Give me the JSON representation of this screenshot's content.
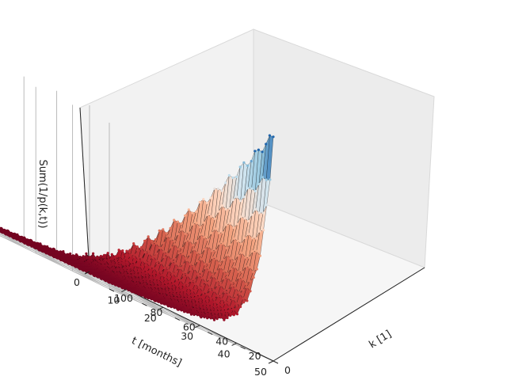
{
  "chart_data": {
    "type": "surface3d",
    "title": "",
    "xlabel": "t [months]",
    "ylabel": "k [1]",
    "zlabel": "Sum(1/p(k,t))",
    "x_ticks": [
      "0",
      "10",
      "20",
      "30",
      "40",
      "50"
    ],
    "y_ticks": [
      "0",
      "20",
      "40",
      "60",
      "80",
      "100"
    ],
    "xlim": [
      0,
      50
    ],
    "ylim": [
      0,
      100
    ],
    "z_tick_labels_shown": false,
    "grid": true,
    "colormap": "RdBu (high values blue, low values dark red)",
    "line_color": "#000000",
    "surface_description": "peak near t=50, k=0; drops steeply as k increases and decays toward low values as t decreases; flat plateau for k > 20",
    "surface_samples": [
      {
        "t": 50,
        "k": 0,
        "z": 1.0
      },
      {
        "t": 40,
        "k": 0,
        "z": 0.72
      },
      {
        "t": 30,
        "k": 0,
        "z": 0.5
      },
      {
        "t": 20,
        "k": 0,
        "z": 0.33
      },
      {
        "t": 10,
        "k": 0,
        "z": 0.18
      },
      {
        "t": 0,
        "k": 0,
        "z": 0.05
      },
      {
        "t": 50,
        "k": 10,
        "z": 0.42
      },
      {
        "t": 50,
        "k": 20,
        "z": 0.12
      },
      {
        "t": 50,
        "k": 40,
        "z": 0.06
      },
      {
        "t": 50,
        "k": 100,
        "z": 0.03
      },
      {
        "t": 0,
        "k": 100,
        "z": 0.02
      }
    ],
    "colors": {
      "high": "#2a6cb0",
      "mid": "#f2d0c0",
      "low": "#67001f"
    }
  }
}
